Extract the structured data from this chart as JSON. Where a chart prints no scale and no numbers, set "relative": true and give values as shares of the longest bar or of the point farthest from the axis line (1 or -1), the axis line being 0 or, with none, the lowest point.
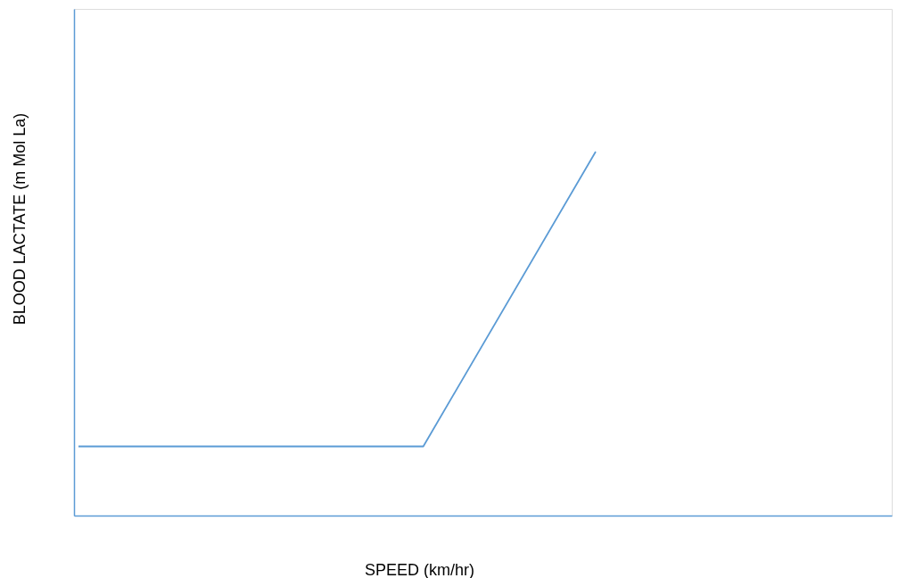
{
  "chart_data": {
    "type": "line",
    "relative": true,
    "xlabel": "SPEED (km/hr)",
    "ylabel": "BLOOD LACTATE (m Mol La)",
    "categories": [
      null,
      null,
      null,
      null
    ],
    "series": [
      {
        "color": "#5b9bd5",
        "values": [
          0.19,
          0.19,
          0.19,
          1
        ]
      }
    ],
    "grid": false,
    "marker": "none",
    "line_style": "solid"
  }
}
